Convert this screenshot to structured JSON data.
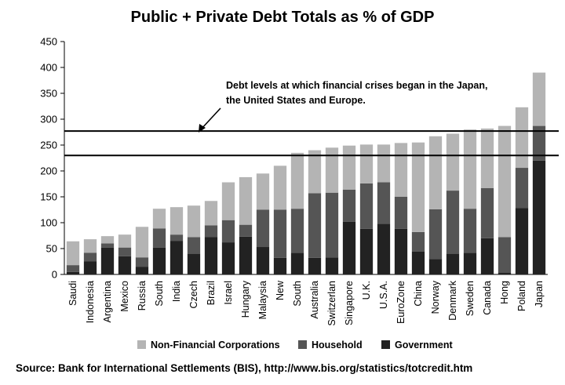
{
  "chart_data": {
    "type": "bar",
    "stacked": true,
    "title": "Public + Private Debt Totals as % of GDP",
    "xlabel": "",
    "ylabel": "",
    "ylim": [
      0,
      450
    ],
    "yticks": [
      "0",
      "50",
      "100",
      "150",
      "200",
      "250",
      "300",
      "350",
      "400",
      "450"
    ],
    "ytick_values": [
      0,
      50,
      100,
      150,
      200,
      250,
      300,
      350,
      400,
      450
    ],
    "grid": false,
    "legend_position": "bottom",
    "categories": [
      "Saudi",
      "Indonesia",
      "Argentina",
      "Mexico",
      "Russia",
      "South",
      "India",
      "Czech",
      "Brazil",
      "Israel",
      "Hungary",
      "Malaysia",
      "New",
      "South",
      "Australia",
      "Switzerlan",
      "Singapore",
      "U.K.",
      "U.S.A.",
      "EuroZone",
      "China",
      "Norway",
      "Denmark",
      "Sweden",
      "Canada",
      "Hong",
      "Poland",
      "Japan"
    ],
    "series": [
      {
        "name": "Government",
        "color": "#222222",
        "values": [
          5,
          25,
          52,
          35,
          15,
          52,
          65,
          40,
          72,
          62,
          73,
          53,
          32,
          42,
          32,
          33,
          102,
          88,
          98,
          88,
          44,
          30,
          40,
          42,
          70,
          3,
          128,
          220
        ]
      },
      {
        "name": "Household",
        "color": "#555555",
        "values": [
          13,
          17,
          8,
          17,
          18,
          37,
          12,
          32,
          23,
          43,
          23,
          72,
          93,
          85,
          125,
          125,
          62,
          88,
          80,
          62,
          38,
          96,
          122,
          85,
          97,
          69,
          78,
          67
        ]
      },
      {
        "name": "Non-Financial Corporations",
        "color": "#b4b4b4",
        "values": [
          46,
          26,
          14,
          25,
          59,
          38,
          53,
          61,
          47,
          73,
          92,
          70,
          85,
          108,
          83,
          87,
          85,
          75,
          73,
          104,
          173,
          141,
          110,
          153,
          115,
          215,
          117,
          103
        ]
      }
    ],
    "reference_lines": [
      230,
      277
    ],
    "annotation": {
      "line1": "Debt levels at which financial crises began in the Japan,",
      "line2": "the United States and Europe."
    },
    "legend": {
      "nonfin": "Non-Financial Corporations",
      "household": "Household",
      "government": "Government"
    },
    "source": "Source: Bank for International Settlements (BIS), http://www.bis.org/statistics/totcredit.htm"
  }
}
